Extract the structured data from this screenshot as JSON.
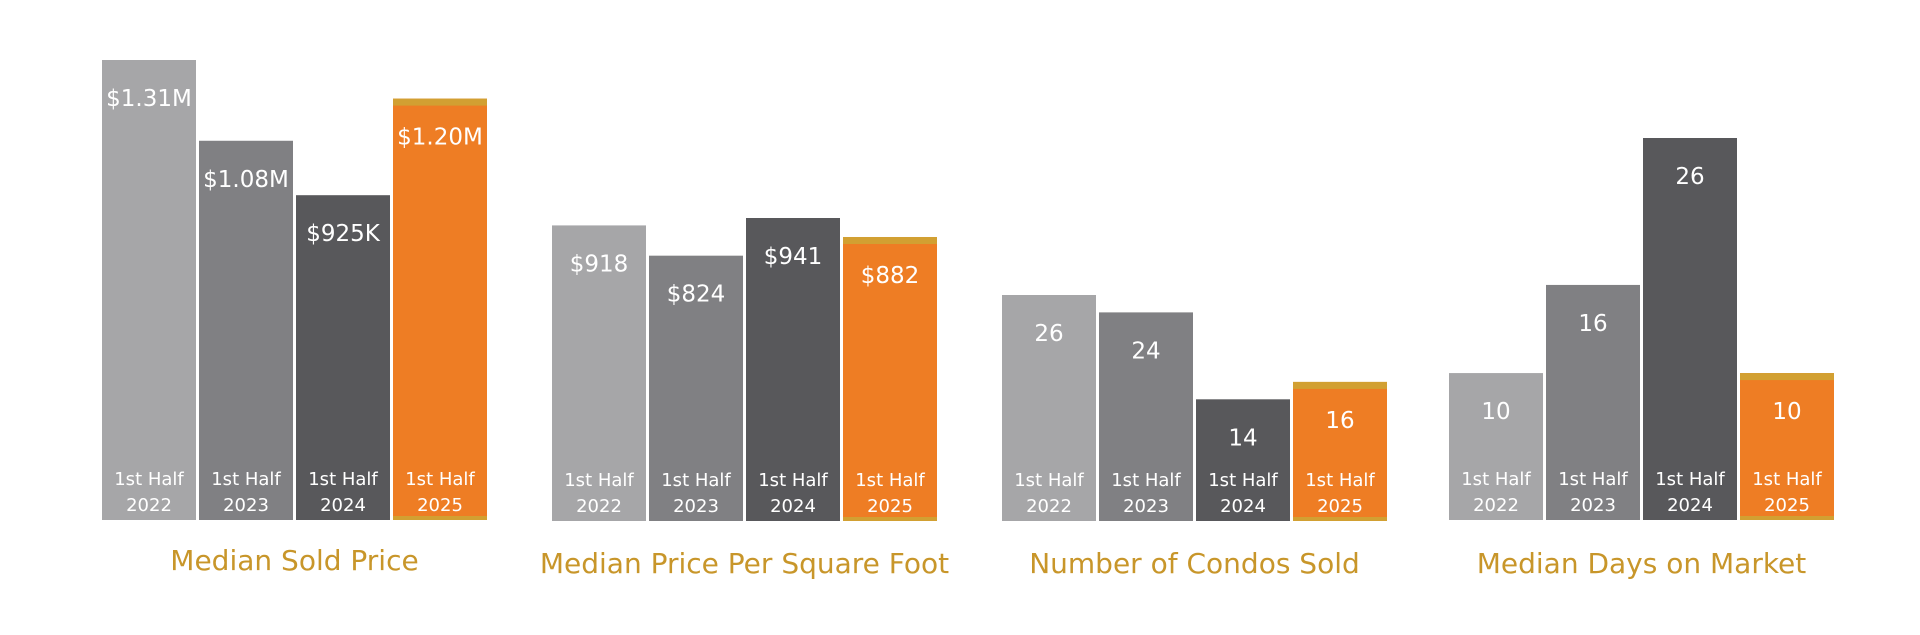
{
  "colors": {
    "series": [
      "#a6a6a8",
      "#808083",
      "#58585b",
      "#ee7d24"
    ],
    "title": "#c8962a",
    "highlight_band": "#d2a032"
  },
  "chart_data": [
    {
      "type": "bar",
      "title": "Median Sold Price",
      "categories": [
        [
          "1st Half",
          "2022"
        ],
        [
          "1st Half",
          "2023"
        ],
        [
          "1st Half",
          "2024"
        ],
        [
          "1st Half",
          "2025"
        ]
      ],
      "values": [
        1310000,
        1080000,
        925000,
        1200000
      ],
      "data_labels": [
        "$1.31M",
        "$1.08M",
        "$925K",
        "$1.20M"
      ]
    },
    {
      "type": "bar",
      "title": "Median Price Per Square Foot",
      "categories": [
        [
          "1st Half",
          "2022"
        ],
        [
          "1st Half",
          "2023"
        ],
        [
          "1st Half",
          "2024"
        ],
        [
          "1st Half",
          "2025"
        ]
      ],
      "values": [
        918,
        824,
        941,
        882
      ],
      "data_labels": [
        "$918",
        "$824",
        "$941",
        "$882"
      ]
    },
    {
      "type": "bar",
      "title": "Number of Condos Sold",
      "categories": [
        [
          "1st Half",
          "2022"
        ],
        [
          "1st Half",
          "2023"
        ],
        [
          "1st Half",
          "2024"
        ],
        [
          "1st Half",
          "2025"
        ]
      ],
      "values": [
        26,
        24,
        14,
        16
      ],
      "data_labels": [
        "26",
        "24",
        "14",
        "16"
      ]
    },
    {
      "type": "bar",
      "title": "Median Days on Market",
      "categories": [
        [
          "1st Half",
          "2022"
        ],
        [
          "1st Half",
          "2023"
        ],
        [
          "1st Half",
          "2024"
        ],
        [
          "1st Half",
          "2025"
        ]
      ],
      "values": [
        10,
        16,
        26,
        10
      ],
      "data_labels": [
        "10",
        "16",
        "26",
        "10"
      ]
    }
  ]
}
